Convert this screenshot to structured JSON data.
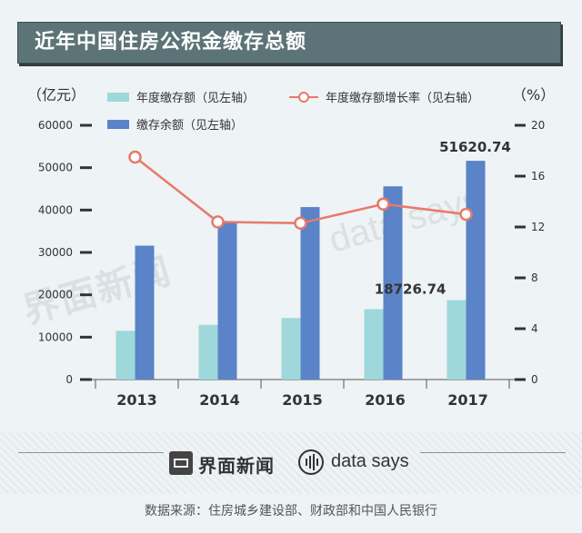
{
  "title": "近年中国住房公积金缴存总额",
  "left_unit": "（亿元）",
  "right_unit": "（%）",
  "legend": {
    "annual": "年度缴存额（见左轴）",
    "balance": "缴存余额（见左轴）",
    "growth": "年度缴存额增长率（见右轴）"
  },
  "colors": {
    "annual": "#9ed8db",
    "balance": "#5b83c8",
    "growth": "#e8796a",
    "background": "#eef3f5",
    "title_bar": "#5c7477"
  },
  "chart_data": {
    "type": "bar",
    "categories": [
      "2013",
      "2014",
      "2015",
      "2016",
      "2017"
    ],
    "series": [
      {
        "name": "年度缴存额（见左轴）",
        "type": "bar",
        "axis": "left",
        "values": [
          11500,
          12900,
          14500,
          16600,
          18726.74
        ]
      },
      {
        "name": "缴存余额（见左轴）",
        "type": "bar",
        "axis": "left",
        "values": [
          31600,
          37100,
          40700,
          45600,
          51620.74
        ]
      },
      {
        "name": "年度缴存额增长率（见右轴）",
        "type": "line",
        "axis": "right",
        "values": [
          17.5,
          12.4,
          12.3,
          13.8,
          13.0
        ]
      }
    ],
    "y_left": {
      "ylim": [
        0,
        60000
      ],
      "ticks": [
        "0",
        "10000",
        "20000",
        "30000",
        "40000",
        "50000",
        "60000"
      ]
    },
    "y_right": {
      "ylim": [
        0,
        20
      ],
      "ticks": [
        "0",
        "4",
        "8",
        "12",
        "16",
        "20"
      ]
    },
    "data_labels": {
      "annual_2017": "18726.74",
      "balance_2017": "51620.74"
    }
  },
  "footer": {
    "brand": "界面新闻",
    "brand2": "data says",
    "source": "数据来源：住房城乡建设部、财政部和中国人民银行"
  },
  "watermark": {
    "left": "界面新闻",
    "right": "data says"
  }
}
